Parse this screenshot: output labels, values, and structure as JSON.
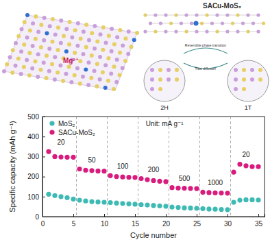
{
  "chart_data": {
    "type": "scatter",
    "x_label": "Cycle number",
    "y_label": "Specific capacity (mAh g⁻¹)",
    "x": [
      1,
      2,
      3,
      4,
      5,
      6,
      7,
      8,
      9,
      10,
      11,
      12,
      13,
      14,
      15,
      16,
      17,
      18,
      19,
      20,
      21,
      22,
      23,
      24,
      25,
      26,
      27,
      28,
      29,
      30,
      31,
      32,
      33,
      34,
      35
    ],
    "series": [
      {
        "name": "MoS₂",
        "color": "#3dbab3",
        "marker": "circle",
        "values": [
          112,
          105,
          100,
          95,
          88,
          82,
          78,
          75,
          73,
          72,
          70,
          68,
          66,
          64,
          62,
          60,
          58,
          56,
          54,
          52,
          48,
          46,
          44,
          43,
          42,
          40,
          38,
          37,
          36,
          35,
          72,
          82,
          84,
          84,
          83
        ]
      },
      {
        "name": "SACu-MoS₂",
        "color": "#d81b7d",
        "marker": "circle",
        "values": [
          325,
          300,
          298,
          297,
          297,
          238,
          232,
          230,
          228,
          227,
          205,
          200,
          198,
          197,
          196,
          190,
          185,
          180,
          177,
          175,
          145,
          143,
          142,
          141,
          140,
          122,
          120,
          119,
          118,
          117,
          222,
          262,
          254,
          250,
          250
        ]
      }
    ],
    "xlim": [
      0,
      36
    ],
    "xticks": [
      0,
      5,
      10,
      15,
      20,
      25,
      30,
      35
    ],
    "ylim": [
      0,
      500
    ],
    "yticks": [
      0,
      100,
      200,
      300,
      400,
      500
    ],
    "legend": "upper left",
    "unit_label": "Unit: mA g⁻¹",
    "dividers": [
      5.5,
      10.5,
      15.5,
      20.5,
      25.5,
      30.5
    ],
    "rate_labels": [
      {
        "label": "20",
        "start": 1,
        "end": 5
      },
      {
        "label": "50",
        "start": 6,
        "end": 10
      },
      {
        "label": "100",
        "start": 11,
        "end": 15
      },
      {
        "label": "200",
        "start": 16,
        "end": 20
      },
      {
        "label": "500",
        "start": 21,
        "end": 25
      },
      {
        "label": "1000",
        "start": 26,
        "end": 30
      },
      {
        "label": "20",
        "start": 31,
        "end": 35
      }
    ],
    "illustration": {
      "ion": "Mg²⁺",
      "material": "SACu-MoS₂",
      "phase_transition": "Reversible phase transition",
      "phases": [
        "2H",
        "1T"
      ],
      "note": "Fast diffusion"
    }
  }
}
